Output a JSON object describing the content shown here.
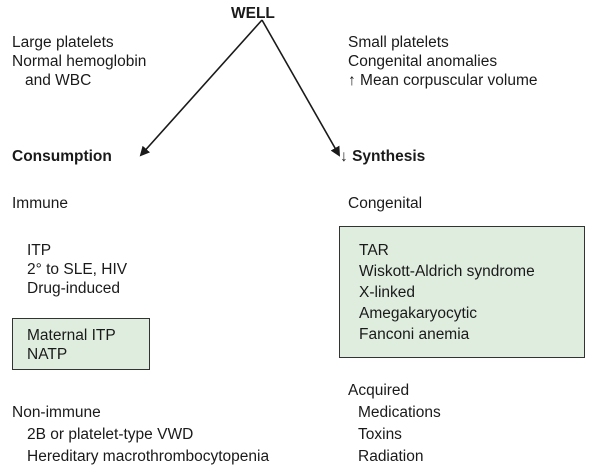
{
  "root": {
    "title": "WELL"
  },
  "colors": {
    "box_fill": "#dfeddf",
    "arrow": "#1a1a1a"
  },
  "left": {
    "features": [
      "Large platelets",
      "Normal hemoglobin",
      "and WBC"
    ],
    "heading": "Consumption",
    "immune_label": "Immune",
    "immune_items": [
      "ITP",
      "2° to SLE, HIV",
      "Drug-induced"
    ],
    "boxed_items": [
      "Maternal ITP",
      "NATP"
    ],
    "nonimmune_label": "Non-immune",
    "nonimmune_items": [
      "2B or platelet-type VWD",
      "Hereditary macrothrombocytopenia"
    ]
  },
  "right": {
    "features": [
      "Small platelets",
      "Congenital anomalies",
      "↑ Mean corpuscular volume"
    ],
    "heading_arrow": "↓",
    "heading": "Synthesis",
    "congenital_label": "Congenital",
    "boxed_items": [
      "TAR",
      "Wiskott-Aldrich syndrome",
      "X-linked",
      "Amegakaryocytic",
      "Fanconi anemia"
    ],
    "acquired_label": "Acquired",
    "acquired_items": [
      "Medications",
      "Toxins",
      "Radiation"
    ]
  }
}
